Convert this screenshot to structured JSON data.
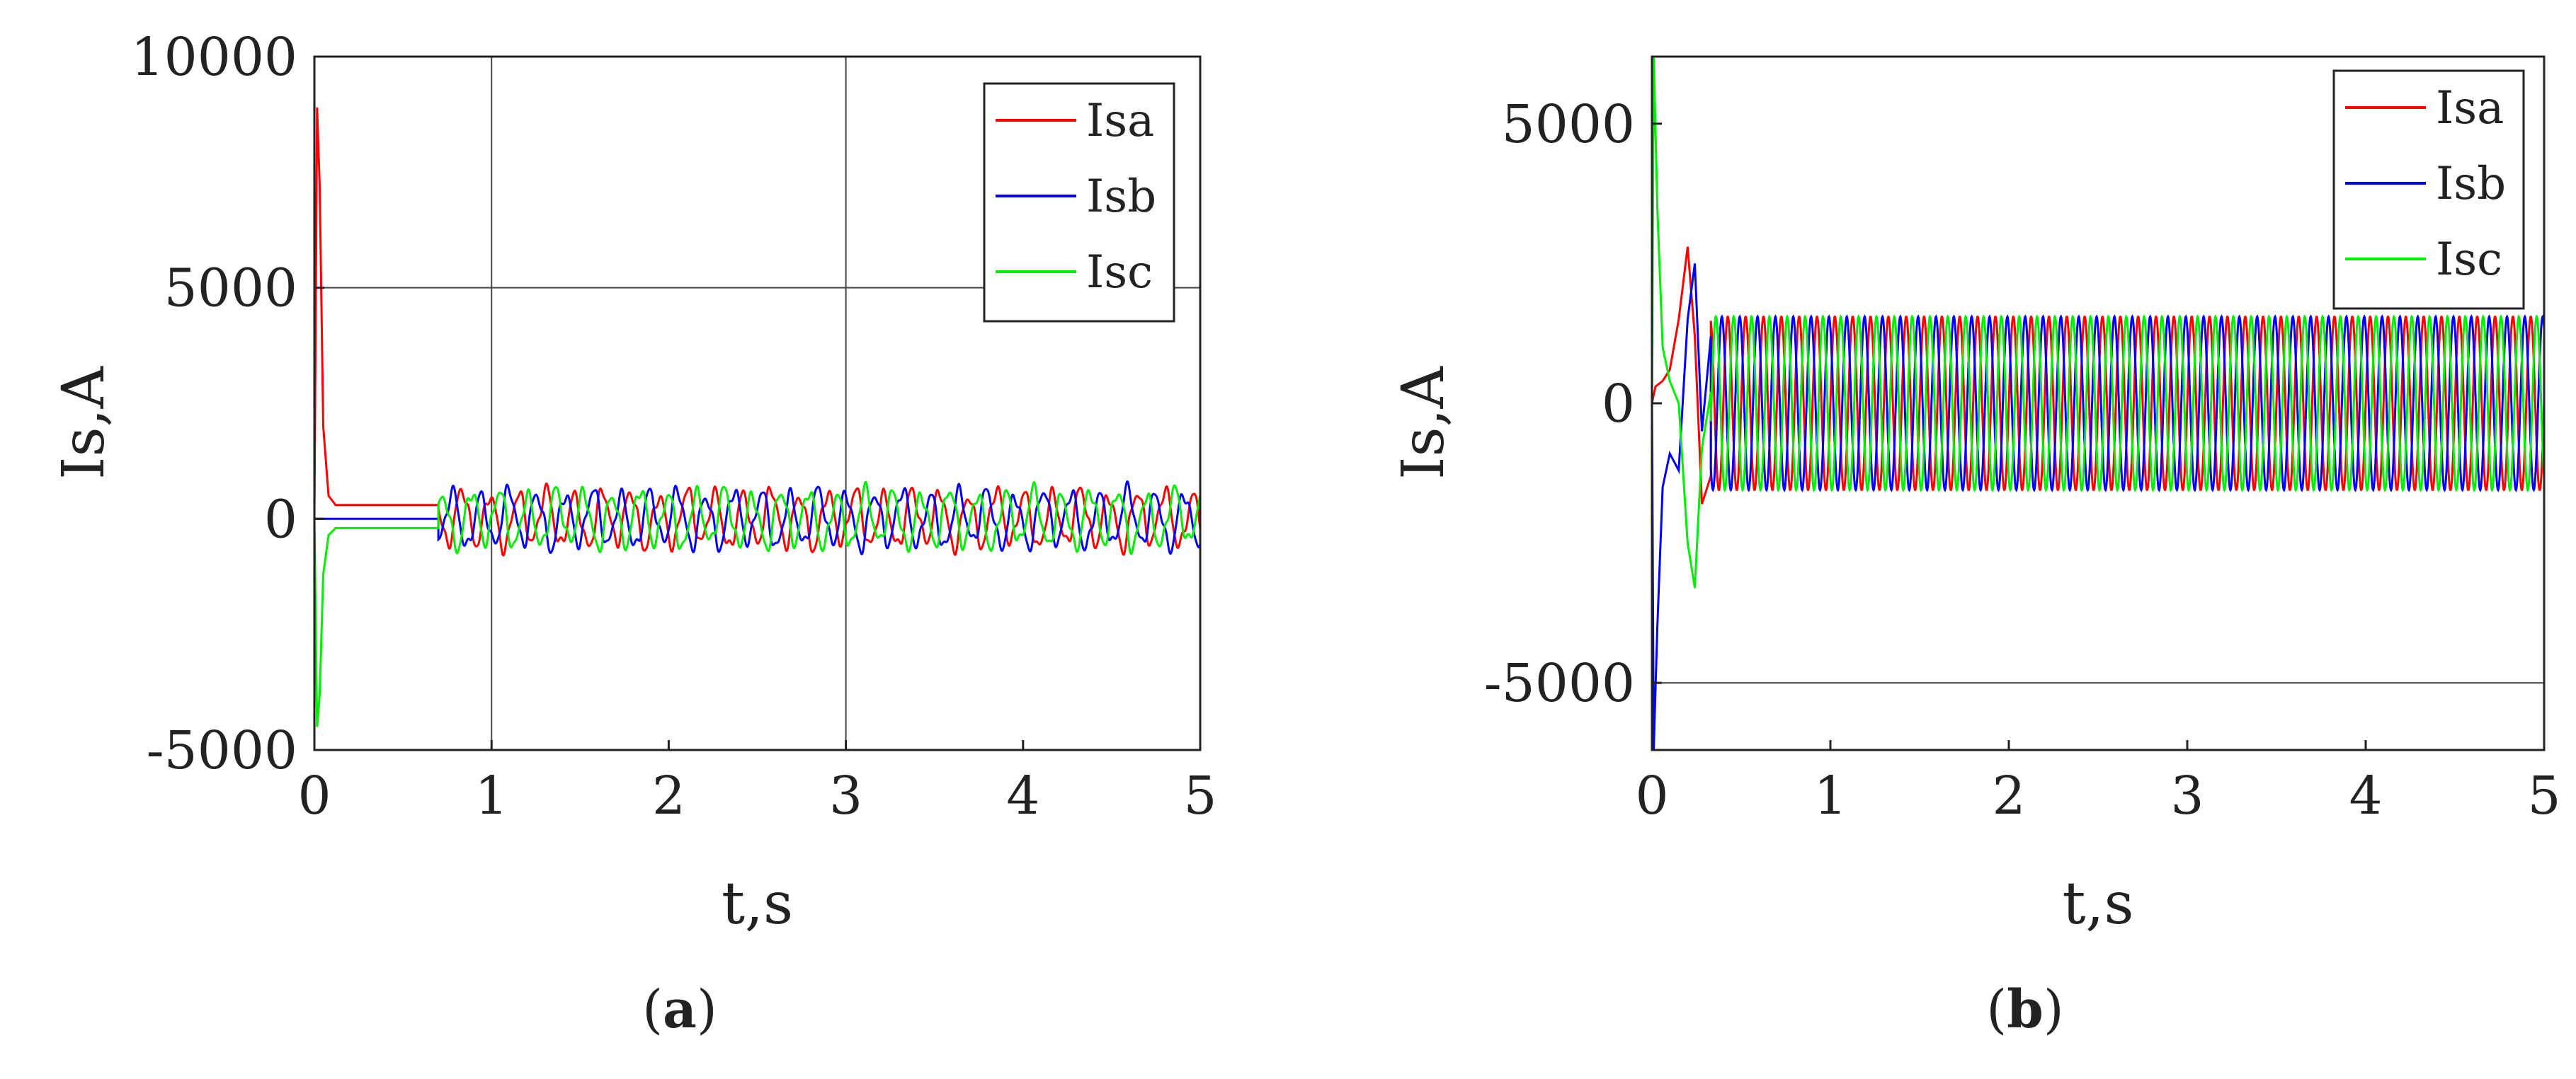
{
  "chart_data": [
    {
      "type": "line",
      "panel_label": "(a)",
      "panel_letter": "a",
      "xlabel": "t,s",
      "ylabel": "Is,A",
      "xlim": [
        0,
        5
      ],
      "ylim": [
        -5000,
        10000
      ],
      "xticks": [
        "0",
        "1",
        "2",
        "3",
        "4",
        "5"
      ],
      "yticks": [
        "-5000",
        "0",
        "5000",
        "10000"
      ],
      "grid": {
        "h": [
          5000
        ],
        "v": [
          1,
          3
        ]
      },
      "legend_position": "top-right",
      "series": [
        {
          "name": "Isa",
          "color": "#ff0000",
          "phase": 0,
          "points": [
            [
              0,
              0
            ],
            [
              0.015,
              8900
            ],
            [
              0.03,
              7200
            ],
            [
              0.05,
              2000
            ],
            [
              0.08,
              500
            ],
            [
              0.12,
              300
            ],
            [
              0.7,
              300
            ]
          ],
          "steady": {
            "start": 0.7,
            "amp": 560,
            "freq": 6.3,
            "noise": 220
          }
        },
        {
          "name": "Isb",
          "color": "#0000ff",
          "phase": 2.094,
          "points": [
            [
              0,
              0
            ],
            [
              0.7,
              0
            ]
          ],
          "steady": {
            "start": 0.7,
            "amp": 560,
            "freq": 6.3,
            "noise": 220
          }
        },
        {
          "name": "Isc",
          "color": "#00ee00",
          "phase": 4.189,
          "points": [
            [
              0,
              0
            ],
            [
              0.015,
              -4500
            ],
            [
              0.03,
              -3800
            ],
            [
              0.05,
              -1200
            ],
            [
              0.08,
              -350
            ],
            [
              0.12,
              -200
            ],
            [
              0.7,
              -200
            ]
          ],
          "steady": {
            "start": 0.7,
            "amp": 560,
            "freq": 6.3,
            "noise": 220
          }
        }
      ]
    },
    {
      "type": "line",
      "panel_label": "(b)",
      "panel_letter": "b",
      "xlabel": "t,s",
      "ylabel": "Is,A",
      "xlim": [
        0,
        5
      ],
      "ylim": [
        -6200,
        6200
      ],
      "xticks": [
        "0",
        "1",
        "2",
        "3",
        "4",
        "5"
      ],
      "yticks": [
        "-5000",
        "0",
        "5000"
      ],
      "grid": {
        "h": [
          -5000
        ],
        "v": []
      },
      "legend_position": "top-right",
      "series": [
        {
          "name": "Isa",
          "color": "#ff0000",
          "phase": 0,
          "points": [
            [
              0,
              0
            ],
            [
              0.02,
              300
            ],
            [
              0.06,
              400
            ],
            [
              0.1,
              600
            ],
            [
              0.15,
              1500
            ],
            [
              0.2,
              2800
            ],
            [
              0.24,
              1200
            ],
            [
              0.28,
              -1800
            ],
            [
              0.33,
              -1300
            ]
          ],
          "steady": {
            "start": 0.33,
            "amp": 1550,
            "freq": 10,
            "noise": 0
          }
        },
        {
          "name": "Isb",
          "color": "#0000ff",
          "phase": 2.094,
          "points": [
            [
              0,
              0
            ],
            [
              0.01,
              -6200
            ],
            [
              0.03,
              -4000
            ],
            [
              0.06,
              -1500
            ],
            [
              0.1,
              -900
            ],
            [
              0.15,
              -1200
            ],
            [
              0.2,
              1500
            ],
            [
              0.24,
              2500
            ],
            [
              0.28,
              -500
            ],
            [
              0.33,
              1200
            ]
          ],
          "steady": {
            "start": 0.33,
            "amp": 1550,
            "freq": 10,
            "noise": 0
          }
        },
        {
          "name": "Isc",
          "color": "#00ee00",
          "phase": 4.189,
          "points": [
            [
              0,
              0
            ],
            [
              0.01,
              6200
            ],
            [
              0.03,
              3500
            ],
            [
              0.06,
              1000
            ],
            [
              0.1,
              400
            ],
            [
              0.15,
              0
            ],
            [
              0.2,
              -2500
            ],
            [
              0.24,
              -3300
            ],
            [
              0.28,
              -800
            ],
            [
              0.33,
              200
            ]
          ],
          "steady": {
            "start": 0.33,
            "amp": 1550,
            "freq": 10,
            "noise": 0
          }
        }
      ]
    }
  ]
}
